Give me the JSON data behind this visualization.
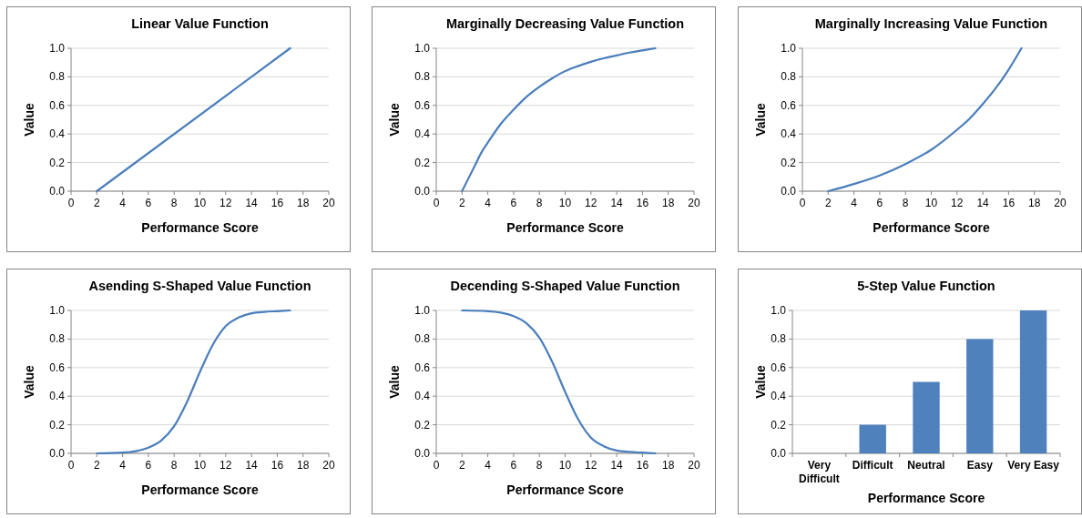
{
  "chart_data": [
    {
      "type": "line",
      "title": "Linear Value Function",
      "xlabel": "Performance Score",
      "ylabel": "Value",
      "x": [
        2,
        17
      ],
      "series": [
        {
          "color": "#4a7ebb",
          "values": [
            0,
            1
          ]
        }
      ],
      "xlim": [
        0,
        20
      ],
      "xticks": [
        0,
        2,
        4,
        6,
        8,
        10,
        12,
        14,
        16,
        18,
        20
      ],
      "ylim": [
        0,
        1
      ],
      "yticks": [
        {
          "value": 0,
          "label": "0.0"
        },
        {
          "value": 0.2,
          "label": "0.2"
        },
        {
          "value": 0.4,
          "label": "0.4"
        },
        {
          "value": 0.6,
          "label": "0.6"
        },
        {
          "value": 0.8,
          "label": "0.8"
        },
        {
          "value": 1,
          "label": "1.0"
        }
      ],
      "grid": "y"
    },
    {
      "type": "line",
      "title": "Marginally Decreasing Value Function",
      "xlabel": "Performance Score",
      "ylabel": "Value",
      "x": [
        2,
        3,
        3.5,
        4,
        5,
        6,
        7,
        8,
        9,
        10,
        11,
        12,
        13,
        14,
        15,
        16,
        17
      ],
      "series": [
        {
          "color": "#4a7ebb",
          "values": [
            0,
            0.18,
            0.27,
            0.34,
            0.47,
            0.57,
            0.66,
            0.73,
            0.79,
            0.84,
            0.875,
            0.905,
            0.93,
            0.95,
            0.97,
            0.985,
            1
          ]
        }
      ],
      "xlim": [
        0,
        20
      ],
      "xticks": [
        0,
        2,
        4,
        6,
        8,
        10,
        12,
        14,
        16,
        18,
        20
      ],
      "ylim": [
        0,
        1
      ],
      "yticks": [
        {
          "value": 0,
          "label": "0.0"
        },
        {
          "value": 0.2,
          "label": "0.2"
        },
        {
          "value": 0.4,
          "label": "0.4"
        },
        {
          "value": 0.6,
          "label": "0.6"
        },
        {
          "value": 0.8,
          "label": "0.8"
        },
        {
          "value": 1,
          "label": "1.0"
        }
      ],
      "grid": "y"
    },
    {
      "type": "line",
      "title": "Marginally Increasing Value Function",
      "xlabel": "Performance Score",
      "ylabel": "Value",
      "x": [
        2,
        4,
        6,
        8,
        10,
        12,
        13,
        14,
        15,
        16,
        17
      ],
      "series": [
        {
          "color": "#4a7ebb",
          "values": [
            0,
            0.05,
            0.11,
            0.19,
            0.29,
            0.43,
            0.51,
            0.61,
            0.72,
            0.85,
            1
          ]
        }
      ],
      "xlim": [
        0,
        20
      ],
      "xticks": [
        0,
        2,
        4,
        6,
        8,
        10,
        12,
        14,
        16,
        18,
        20
      ],
      "ylim": [
        0,
        1
      ],
      "yticks": [
        {
          "value": 0,
          "label": "0.0"
        },
        {
          "value": 0.2,
          "label": "0.2"
        },
        {
          "value": 0.4,
          "label": "0.4"
        },
        {
          "value": 0.6,
          "label": "0.6"
        },
        {
          "value": 0.8,
          "label": "0.8"
        },
        {
          "value": 1,
          "label": "1.0"
        }
      ],
      "grid": "y"
    },
    {
      "type": "line",
      "title": "Asending S-Shaped Value Function",
      "xlabel": "Performance Score",
      "ylabel": "Value",
      "x": [
        2,
        4,
        5,
        6,
        7,
        8,
        9,
        10,
        11,
        12,
        13,
        14,
        15,
        16,
        17
      ],
      "series": [
        {
          "color": "#4a7ebb",
          "values": [
            0,
            0.005,
            0.015,
            0.04,
            0.09,
            0.19,
            0.36,
            0.57,
            0.76,
            0.89,
            0.95,
            0.98,
            0.99,
            0.995,
            1
          ]
        }
      ],
      "xlim": [
        0,
        20
      ],
      "xticks": [
        0,
        2,
        4,
        6,
        8,
        10,
        12,
        14,
        16,
        18,
        20
      ],
      "ylim": [
        0,
        1
      ],
      "yticks": [
        {
          "value": 0,
          "label": "0.0"
        },
        {
          "value": 0.2,
          "label": "0.2"
        },
        {
          "value": 0.4,
          "label": "0.4"
        },
        {
          "value": 0.6,
          "label": "0.6"
        },
        {
          "value": 0.8,
          "label": "0.8"
        },
        {
          "value": 1,
          "label": "1.0"
        }
      ],
      "grid": "y"
    },
    {
      "type": "line",
      "title": "Decending S-Shaped Value Function",
      "xlabel": "Performance Score",
      "ylabel": "Value",
      "x": [
        2,
        4,
        5,
        6,
        7,
        8,
        9,
        10,
        11,
        12,
        13,
        14,
        15,
        16,
        17
      ],
      "series": [
        {
          "color": "#4a7ebb",
          "values": [
            1,
            0.995,
            0.985,
            0.96,
            0.91,
            0.81,
            0.64,
            0.43,
            0.24,
            0.11,
            0.05,
            0.02,
            0.01,
            0.005,
            0
          ]
        }
      ],
      "xlim": [
        0,
        20
      ],
      "xticks": [
        0,
        2,
        4,
        6,
        8,
        10,
        12,
        14,
        16,
        18,
        20
      ],
      "ylim": [
        0,
        1
      ],
      "yticks": [
        {
          "value": 0,
          "label": "0.0"
        },
        {
          "value": 0.2,
          "label": "0.2"
        },
        {
          "value": 0.4,
          "label": "0.4"
        },
        {
          "value": 0.6,
          "label": "0.6"
        },
        {
          "value": 0.8,
          "label": "0.8"
        },
        {
          "value": 1,
          "label": "1.0"
        }
      ],
      "grid": "y"
    },
    {
      "type": "bar",
      "title": "5-Step Value Function",
      "xlabel": "Performance Score",
      "ylabel": "Value",
      "categories": [
        "Very Difficult",
        "Difficult",
        "Neutral",
        "Easy",
        "Very Easy"
      ],
      "values": [
        0,
        0.2,
        0.5,
        0.8,
        1
      ],
      "color": "#4f81bd",
      "ylim": [
        0,
        1
      ],
      "yticks": [
        {
          "value": 0,
          "label": "0.0"
        },
        {
          "value": 0.2,
          "label": "0.2"
        },
        {
          "value": 0.4,
          "label": "0.4"
        },
        {
          "value": 0.6,
          "label": "0.6"
        },
        {
          "value": 0.8,
          "label": "0.8"
        },
        {
          "value": 1,
          "label": "1.0"
        }
      ],
      "grid": "y"
    }
  ]
}
